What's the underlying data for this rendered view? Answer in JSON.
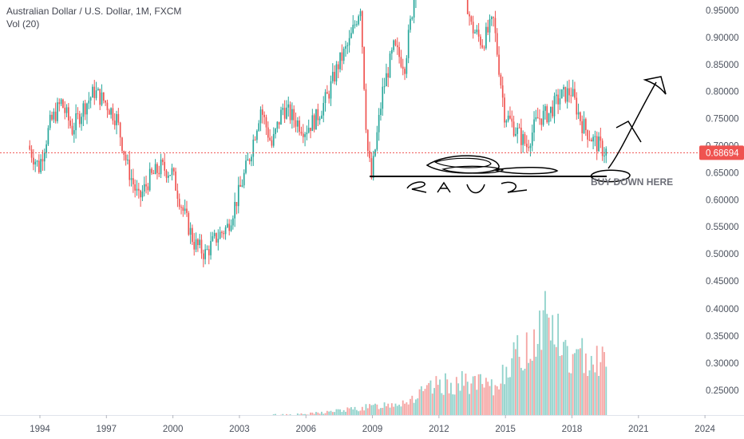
{
  "legend": {
    "symbol": "Australian Dollar / U.S. Dollar, 1M, FXCM",
    "volume": "Vol (20)"
  },
  "annotation_text": "BUY DOWN HERE",
  "last_price_label": "0.68694",
  "colors": {
    "up": "#26a69a",
    "down": "#ef5350",
    "vol_up": "#92d3cc",
    "vol_down": "#f5a6a4",
    "price_line": "#ef5350",
    "axis_text": "#4c525e",
    "drawing": "#000000"
  },
  "chart_data": {
    "type": "candlestick",
    "x_ticks": [
      "1994",
      "1997",
      "2000",
      "2003",
      "2006",
      "2009",
      "2012",
      "2015",
      "2018",
      "2021",
      "2024"
    ],
    "price_axis_ticks": [
      "0.95000",
      "0.90000",
      "0.85000",
      "0.80000",
      "0.75000",
      "0.70000",
      "0.65000",
      "0.60000",
      "0.55000",
      "0.50000",
      "0.45000"
    ],
    "volume_axis_ticks": [
      "0.40000",
      "0.35000",
      "0.30000",
      "0.25000"
    ],
    "last_price": 0.68694,
    "price_path": [
      [
        1993.5,
        0.7
      ],
      [
        1994.0,
        0.66
      ],
      [
        1994.5,
        0.74
      ],
      [
        1995.0,
        0.78
      ],
      [
        1995.5,
        0.73
      ],
      [
        1996.0,
        0.77
      ],
      [
        1996.5,
        0.8
      ],
      [
        1997.0,
        0.78
      ],
      [
        1997.5,
        0.75
      ],
      [
        1998.0,
        0.66
      ],
      [
        1998.5,
        0.6
      ],
      [
        1999.0,
        0.64
      ],
      [
        1999.5,
        0.66
      ],
      [
        2000.0,
        0.65
      ],
      [
        2000.5,
        0.58
      ],
      [
        2001.0,
        0.52
      ],
      [
        2001.5,
        0.5
      ],
      [
        2002.0,
        0.53
      ],
      [
        2002.5,
        0.55
      ],
      [
        2003.0,
        0.61
      ],
      [
        2003.5,
        0.68
      ],
      [
        2004.0,
        0.77
      ],
      [
        2004.5,
        0.7
      ],
      [
        2005.0,
        0.77
      ],
      [
        2005.5,
        0.75
      ],
      [
        2006.0,
        0.73
      ],
      [
        2006.5,
        0.75
      ],
      [
        2007.0,
        0.79
      ],
      [
        2007.5,
        0.85
      ],
      [
        2008.0,
        0.89
      ],
      [
        2008.5,
        0.96
      ],
      [
        2008.8,
        0.7
      ],
      [
        2009.0,
        0.64
      ],
      [
        2009.5,
        0.8
      ],
      [
        2010.0,
        0.88
      ],
      [
        2010.5,
        0.85
      ],
      [
        2011.0,
        1.0
      ],
      [
        2011.5,
        1.05
      ],
      [
        2012.0,
        1.03
      ],
      [
        2012.5,
        1.02
      ],
      [
        2013.0,
        1.04
      ],
      [
        2013.5,
        0.92
      ],
      [
        2014.0,
        0.89
      ],
      [
        2014.5,
        0.93
      ],
      [
        2015.0,
        0.76
      ],
      [
        2015.5,
        0.73
      ],
      [
        2016.0,
        0.7
      ],
      [
        2016.5,
        0.75
      ],
      [
        2017.0,
        0.76
      ],
      [
        2017.5,
        0.79
      ],
      [
        2018.0,
        0.8
      ],
      [
        2018.5,
        0.74
      ],
      [
        2019.0,
        0.71
      ],
      [
        2019.5,
        0.69
      ]
    ],
    "volume_path": [
      [
        2004.5,
        0.205
      ],
      [
        2006.0,
        0.206
      ],
      [
        2008.0,
        0.215
      ],
      [
        2009.0,
        0.22
      ],
      [
        2010.5,
        0.23
      ],
      [
        2012.0,
        0.26
      ],
      [
        2013.5,
        0.265
      ],
      [
        2014.5,
        0.25
      ],
      [
        2015.0,
        0.3
      ],
      [
        2016.0,
        0.325
      ],
      [
        2016.8,
        0.395
      ],
      [
        2017.5,
        0.33
      ],
      [
        2018.0,
        0.3
      ],
      [
        2018.8,
        0.32
      ],
      [
        2019.5,
        0.3
      ]
    ],
    "year_range": [
      1992.2,
      2023.6
    ],
    "price_range": [
      0.45,
      0.97
    ],
    "volume_range": [
      0.2,
      0.4
    ],
    "grid": false
  }
}
